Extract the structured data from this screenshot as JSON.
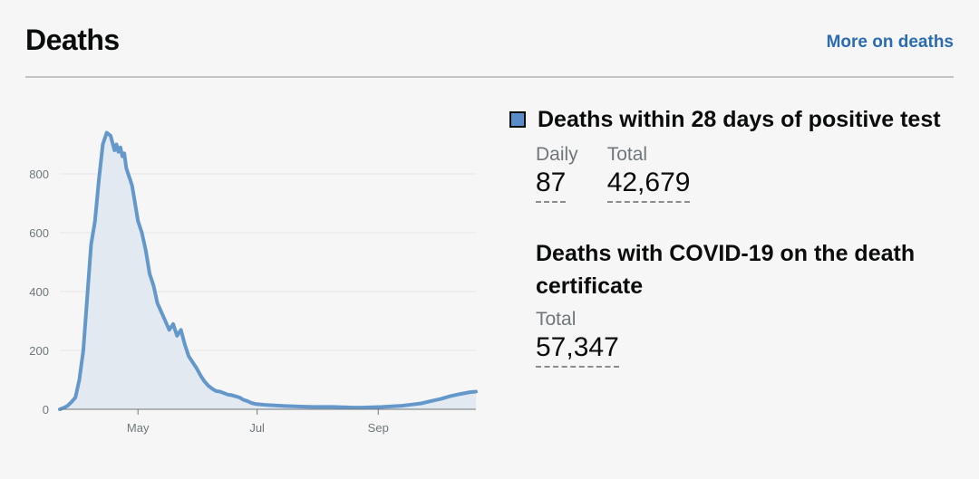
{
  "header": {
    "title": "Deaths",
    "more_link": "More on deaths"
  },
  "metrics": {
    "primary": {
      "title": "Deaths within 28 days of positive test",
      "legend_color": "#5a8cc7",
      "daily_label": "Daily",
      "daily_value": "87",
      "total_label": "Total",
      "total_value": "42,679"
    },
    "secondary": {
      "title": "Deaths with COVID-19 on the death certificate",
      "total_label": "Total",
      "total_value": "57,347"
    }
  },
  "chart_data": {
    "type": "area",
    "title": "",
    "xlabel": "",
    "ylabel": "",
    "ylim": [
      0,
      960
    ],
    "yticks": [
      0,
      200,
      400,
      600,
      800
    ],
    "grid": "horizontal",
    "line_color": "#6498cb",
    "fill_color": "#e3e9f0",
    "x_tick_labels": [
      {
        "label": "May",
        "day": 40
      },
      {
        "label": "Jul",
        "day": 101
      },
      {
        "label": "Sep",
        "day": 163
      }
    ],
    "x_range": [
      0,
      213
    ],
    "series": [
      {
        "x": [
          0,
          2,
          4,
          6,
          8,
          10,
          12,
          14,
          16,
          18,
          20,
          22,
          24,
          26,
          28,
          29,
          30,
          31,
          32,
          33,
          34,
          35,
          36,
          37,
          38,
          40,
          42,
          44,
          46,
          48,
          50,
          52,
          54,
          56,
          58,
          60,
          62,
          64,
          66,
          68,
          70,
          72,
          74,
          76,
          78,
          80,
          82,
          84,
          86,
          88,
          90,
          92,
          94,
          96,
          98,
          100,
          105,
          110,
          115,
          120,
          125,
          130,
          135,
          140,
          145,
          150,
          155,
          160,
          165,
          170,
          175,
          180,
          185,
          190,
          195,
          200,
          205,
          210,
          213
        ],
        "values": [
          0,
          5,
          12,
          25,
          40,
          100,
          200,
          380,
          560,
          640,
          780,
          900,
          940,
          930,
          880,
          900,
          875,
          890,
          860,
          870,
          820,
          800,
          780,
          760,
          720,
          640,
          600,
          540,
          460,
          420,
          360,
          330,
          300,
          270,
          290,
          250,
          270,
          220,
          180,
          160,
          140,
          115,
          95,
          80,
          70,
          62,
          60,
          55,
          50,
          48,
          44,
          40,
          32,
          28,
          22,
          18,
          15,
          13,
          11,
          10,
          9,
          8,
          8,
          8,
          7,
          6,
          6,
          7,
          8,
          10,
          12,
          16,
          20,
          28,
          35,
          45,
          52,
          58,
          60
        ]
      }
    ]
  }
}
